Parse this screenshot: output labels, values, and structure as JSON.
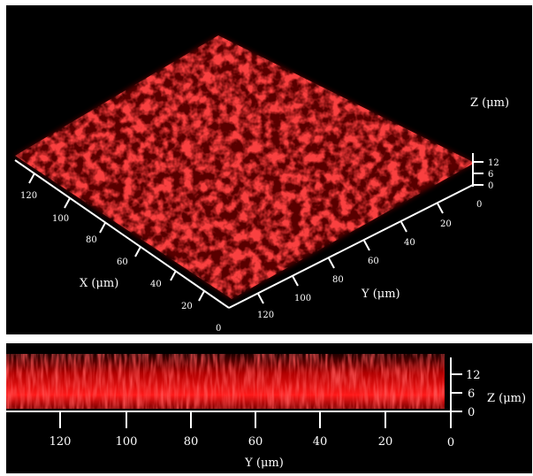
{
  "top_view": {
    "x_axis": {
      "title": "X (μm)",
      "ticks": [
        "0",
        "20",
        "40",
        "60",
        "80",
        "100",
        "120"
      ]
    },
    "y_axis": {
      "title": "Y (μm)",
      "ticks": [
        "0",
        "20",
        "40",
        "60",
        "80",
        "100",
        "120"
      ]
    },
    "z_axis": {
      "title": "Z (μm)",
      "ticks": [
        "0",
        "6",
        "12"
      ]
    }
  },
  "side_view": {
    "y_axis": {
      "title": "Y (μm)",
      "ticks": [
        "120",
        "100",
        "80",
        "60",
        "40",
        "20",
        "0"
      ]
    },
    "z_axis": {
      "title": "Z (μm)",
      "ticks": [
        "0",
        "6",
        "12"
      ]
    }
  },
  "colors": {
    "background": "#000000",
    "signal": "#e01010",
    "axis": "#ffffff"
  }
}
